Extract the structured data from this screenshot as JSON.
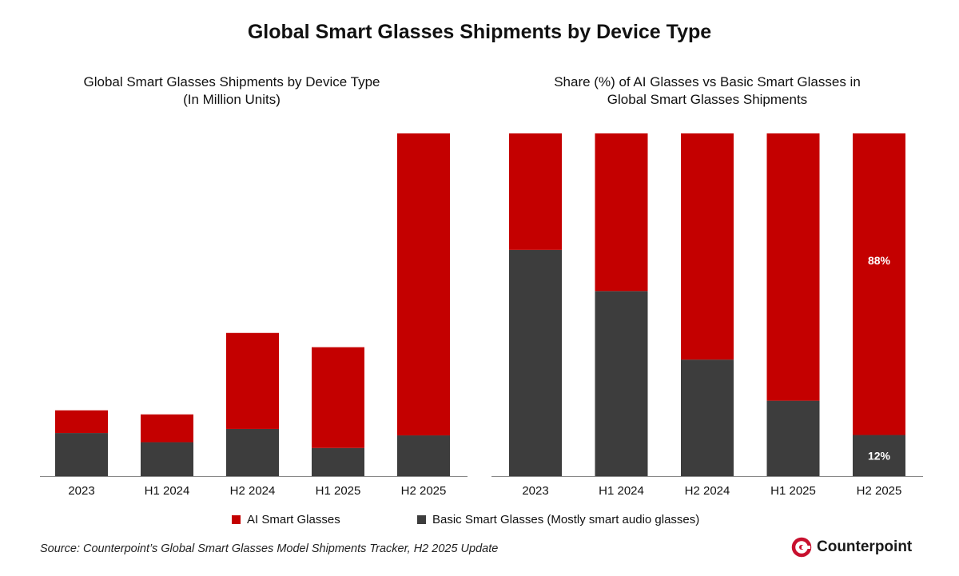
{
  "title": "Global Smart Glasses Shipments by Device Type",
  "colors": {
    "ai": "#c40000",
    "basic": "#3d3d3d",
    "axis": "#888888",
    "brand": "#c8102e"
  },
  "chart_data": [
    {
      "type": "bar",
      "stacked": true,
      "title_lines": [
        "Global Smart Glasses Shipments by Device Type",
        "(In Million Units)"
      ],
      "categories": [
        "2023",
        "H1 2024",
        "H2 2024",
        "H1 2025",
        "H2 2025"
      ],
      "series": [
        {
          "name": "Basic Smart Glasses (Mostly smart audio glasses)",
          "values": [
            1.27,
            1.0,
            1.39,
            0.83,
            1.2
          ]
        },
        {
          "name": "AI Smart Glasses",
          "values": [
            0.67,
            0.82,
            2.83,
            2.97,
            8.9
          ]
        }
      ],
      "ylim": [
        0,
        10.1
      ],
      "xlabel": "",
      "ylabel": "",
      "grid": false
    },
    {
      "type": "bar",
      "stacked": true,
      "percent": true,
      "title_lines": [
        "Share (%) of AI Glasses vs Basic Smart Glasses in",
        "Global Smart Glasses Shipments"
      ],
      "categories": [
        "2023",
        "H1 2024",
        "H2 2024",
        "H1 2025",
        "H2 2025"
      ],
      "series": [
        {
          "name": "Basic Smart Glasses (Mostly smart audio glasses)",
          "values": [
            66,
            54,
            34,
            22,
            12
          ]
        },
        {
          "name": "AI Smart Glasses",
          "values": [
            34,
            46,
            66,
            78,
            88
          ]
        }
      ],
      "data_labels": [
        {
          "category": "H2 2025",
          "series": "AI Smart Glasses",
          "text": "88%"
        },
        {
          "category": "H2 2025",
          "series": "Basic Smart Glasses (Mostly smart audio glasses)",
          "text": "12%"
        }
      ],
      "ylim": [
        0,
        100
      ],
      "xlabel": "",
      "ylabel": "",
      "grid": false
    }
  ],
  "legend": {
    "ai_label": "AI Smart Glasses",
    "basic_label": "Basic Smart Glasses (Mostly smart audio glasses)",
    "position": "bottom-center"
  },
  "source": "Source: Counterpoint’s Global Smart Glasses Model Shipments Tracker, H2 2025 Update",
  "brand": {
    "name": "Counterpoint",
    "logo_icon": "counterpoint-logo-icon"
  }
}
